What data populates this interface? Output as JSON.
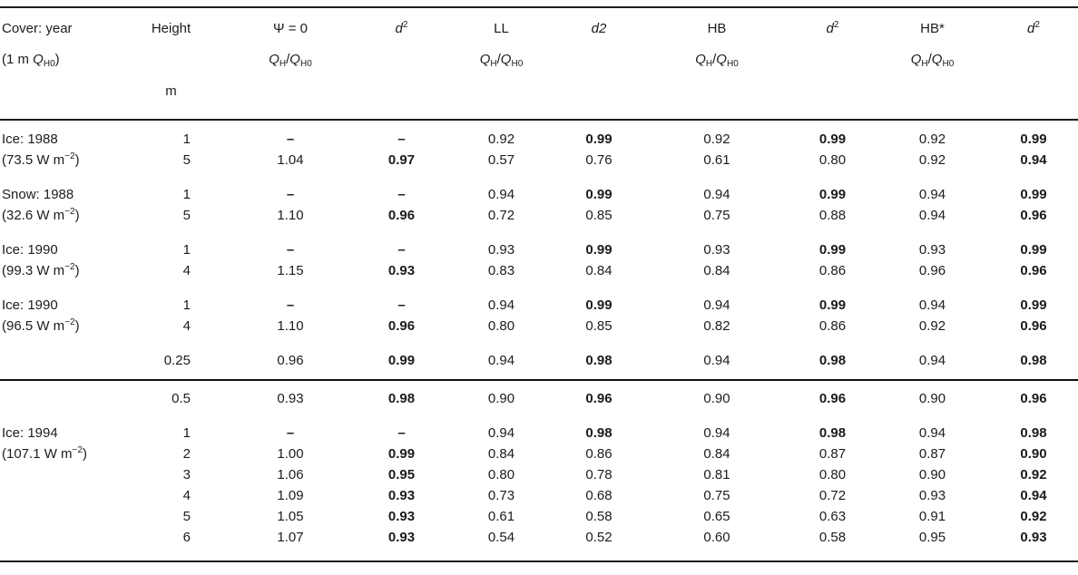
{
  "table": {
    "columns": [
      {
        "name": "cover-year",
        "line1": [
          {
            "t": "Cover: year"
          }
        ],
        "line2": [
          {
            "t": "(1 m "
          },
          {
            "t": "Q",
            "s": "i"
          },
          {
            "t": "H0",
            "s": "sub"
          },
          {
            "t": ")"
          }
        ],
        "line3": []
      },
      {
        "name": "height",
        "line1": [
          {
            "t": "Height"
          }
        ],
        "line2": [],
        "line3": [
          {
            "t": "m"
          }
        ]
      },
      {
        "name": "psi-zero",
        "line1": [
          {
            "t": "Ψ = 0"
          }
        ],
        "line2": [
          {
            "t": "Q",
            "s": "i"
          },
          {
            "t": "H",
            "s": "sub"
          },
          {
            "t": "/"
          },
          {
            "t": "Q",
            "s": "i"
          },
          {
            "t": "H0",
            "s": "sub"
          }
        ],
        "line3": []
      },
      {
        "name": "d2-psi",
        "line1": [
          {
            "t": "d",
            "s": "i"
          },
          {
            "t": "2",
            "s": "sup"
          }
        ],
        "line2": [],
        "line3": []
      },
      {
        "name": "ll",
        "line1": [
          {
            "t": "LL"
          }
        ],
        "line2": [
          {
            "t": "Q",
            "s": "i"
          },
          {
            "t": "H",
            "s": "sub"
          },
          {
            "t": "/"
          },
          {
            "t": "Q",
            "s": "i"
          },
          {
            "t": "H0",
            "s": "sub"
          }
        ],
        "line3": []
      },
      {
        "name": "d2-ll",
        "line1": [
          {
            "t": "d2",
            "s": "i"
          }
        ],
        "line2": [],
        "line3": []
      },
      {
        "name": "hb",
        "line1": [
          {
            "t": "HB"
          }
        ],
        "line2": [
          {
            "t": "Q",
            "s": "i"
          },
          {
            "t": "H",
            "s": "sub"
          },
          {
            "t": "/"
          },
          {
            "t": "Q",
            "s": "i"
          },
          {
            "t": "H0",
            "s": "sub"
          }
        ],
        "line3": []
      },
      {
        "name": "d2-hb",
        "line1": [
          {
            "t": "d",
            "s": "i"
          },
          {
            "t": "2",
            "s": "sup"
          }
        ],
        "line2": [],
        "line3": []
      },
      {
        "name": "hb-star",
        "line1": [
          {
            "t": "HB*"
          }
        ],
        "line2": [
          {
            "t": "Q",
            "s": "i"
          },
          {
            "t": "H",
            "s": "sub"
          },
          {
            "t": "/"
          },
          {
            "t": "Q",
            "s": "i"
          },
          {
            "t": "H0",
            "s": "sub"
          }
        ],
        "line3": []
      },
      {
        "name": "d2-hb-star",
        "line1": [
          {
            "t": "d",
            "s": "i"
          },
          {
            "t": "2",
            "s": "sup"
          }
        ],
        "line2": [],
        "line3": []
      }
    ],
    "sections": {
      "s1": [
        {
          "label": [
            {
              "t": "Ice: 1988"
            }
          ],
          "height": "1",
          "cells": [
            {
              "v": "–",
              "b": true
            },
            {
              "v": "–",
              "b": true
            },
            {
              "v": "0.92"
            },
            {
              "v": "0.99",
              "b": true
            },
            {
              "v": "0.92"
            },
            {
              "v": "0.99",
              "b": true
            },
            {
              "v": "0.92"
            },
            {
              "v": "0.99",
              "b": true
            }
          ]
        },
        {
          "label": [
            {
              "t": "(73.5 W m"
            },
            {
              "t": "−2",
              "s": "sup"
            },
            {
              "t": ")"
            }
          ],
          "height": "5",
          "cells": [
            {
              "v": "1.04"
            },
            {
              "v": "0.97",
              "b": true
            },
            {
              "v": "0.57"
            },
            {
              "v": "0.76"
            },
            {
              "v": "0.61"
            },
            {
              "v": "0.80"
            },
            {
              "v": "0.92"
            },
            {
              "v": "0.94",
              "b": true
            }
          ]
        },
        {
          "label": [
            {
              "t": "Snow: 1988"
            }
          ],
          "height": "1",
          "gap": true,
          "cells": [
            {
              "v": "–",
              "b": true
            },
            {
              "v": "–",
              "b": true
            },
            {
              "v": "0.94"
            },
            {
              "v": "0.99",
              "b": true
            },
            {
              "v": "0.94"
            },
            {
              "v": "0.99",
              "b": true
            },
            {
              "v": "0.94"
            },
            {
              "v": "0.99",
              "b": true
            }
          ]
        },
        {
          "label": [
            {
              "t": "(32.6 W m"
            },
            {
              "t": "−2",
              "s": "sup"
            },
            {
              "t": ")"
            }
          ],
          "height": "5",
          "cells": [
            {
              "v": "1.10"
            },
            {
              "v": "0.96",
              "b": true
            },
            {
              "v": "0.72"
            },
            {
              "v": "0.85"
            },
            {
              "v": "0.75"
            },
            {
              "v": "0.88"
            },
            {
              "v": "0.94"
            },
            {
              "v": "0.96",
              "b": true
            }
          ]
        },
        {
          "label": [
            {
              "t": "Ice: 1990"
            }
          ],
          "height": "1",
          "gap": true,
          "cells": [
            {
              "v": "–",
              "b": true
            },
            {
              "v": "–",
              "b": true
            },
            {
              "v": "0.93"
            },
            {
              "v": "0.99",
              "b": true
            },
            {
              "v": "0.93"
            },
            {
              "v": "0.99",
              "b": true
            },
            {
              "v": "0.93"
            },
            {
              "v": "0.99",
              "b": true
            }
          ]
        },
        {
          "label": [
            {
              "t": "(99.3 W m"
            },
            {
              "t": "−2",
              "s": "sup"
            },
            {
              "t": ")"
            }
          ],
          "height": "4",
          "cells": [
            {
              "v": "1.15"
            },
            {
              "v": "0.93",
              "b": true
            },
            {
              "v": "0.83"
            },
            {
              "v": "0.84"
            },
            {
              "v": "0.84"
            },
            {
              "v": "0.86"
            },
            {
              "v": "0.96"
            },
            {
              "v": "0.96",
              "b": true
            }
          ]
        },
        {
          "label": [
            {
              "t": "Ice: 1990"
            }
          ],
          "height": "1",
          "gap": true,
          "cells": [
            {
              "v": "–",
              "b": true
            },
            {
              "v": "–",
              "b": true
            },
            {
              "v": "0.94"
            },
            {
              "v": "0.99",
              "b": true
            },
            {
              "v": "0.94"
            },
            {
              "v": "0.99",
              "b": true
            },
            {
              "v": "0.94"
            },
            {
              "v": "0.99",
              "b": true
            }
          ]
        },
        {
          "label": [
            {
              "t": "(96.5 W m"
            },
            {
              "t": "−2",
              "s": "sup"
            },
            {
              "t": ")"
            }
          ],
          "height": "4",
          "cells": [
            {
              "v": "1.10"
            },
            {
              "v": "0.96",
              "b": true
            },
            {
              "v": "0.80"
            },
            {
              "v": "0.85"
            },
            {
              "v": "0.82"
            },
            {
              "v": "0.86"
            },
            {
              "v": "0.92"
            },
            {
              "v": "0.96",
              "b": true
            }
          ]
        },
        {
          "label": [],
          "height": "0.25",
          "gap": true,
          "cells": [
            {
              "v": "0.96"
            },
            {
              "v": "0.99",
              "b": true
            },
            {
              "v": "0.94"
            },
            {
              "v": "0.98",
              "b": true
            },
            {
              "v": "0.94"
            },
            {
              "v": "0.98",
              "b": true
            },
            {
              "v": "0.94"
            },
            {
              "v": "0.98",
              "b": true
            }
          ]
        }
      ],
      "s2": [
        {
          "label": [],
          "height": "0.5",
          "cells": [
            {
              "v": "0.93"
            },
            {
              "v": "0.98",
              "b": true
            },
            {
              "v": "0.90"
            },
            {
              "v": "0.96",
              "b": true
            },
            {
              "v": "0.90"
            },
            {
              "v": "0.96",
              "b": true
            },
            {
              "v": "0.90"
            },
            {
              "v": "0.96",
              "b": true
            }
          ]
        },
        {
          "label": [
            {
              "t": "Ice: 1994"
            }
          ],
          "height": "1",
          "gap": true,
          "cells": [
            {
              "v": "–",
              "b": true
            },
            {
              "v": "–",
              "b": true
            },
            {
              "v": "0.94"
            },
            {
              "v": "0.98",
              "b": true
            },
            {
              "v": "0.94"
            },
            {
              "v": "0.98",
              "b": true
            },
            {
              "v": "0.94"
            },
            {
              "v": "0.98",
              "b": true
            }
          ]
        },
        {
          "label": [
            {
              "t": "(107.1 W m"
            },
            {
              "t": "−2",
              "s": "sup"
            },
            {
              "t": ")"
            }
          ],
          "height": "2",
          "cells": [
            {
              "v": "1.00"
            },
            {
              "v": "0.99",
              "b": true
            },
            {
              "v": "0.84"
            },
            {
              "v": "0.86"
            },
            {
              "v": "0.84"
            },
            {
              "v": "0.87"
            },
            {
              "v": "0.87"
            },
            {
              "v": "0.90",
              "b": true
            }
          ]
        },
        {
          "label": [],
          "height": "3",
          "cells": [
            {
              "v": "1.06"
            },
            {
              "v": "0.95",
              "b": true
            },
            {
              "v": "0.80"
            },
            {
              "v": "0.78"
            },
            {
              "v": "0.81"
            },
            {
              "v": "0.80"
            },
            {
              "v": "0.90"
            },
            {
              "v": "0.92",
              "b": true
            }
          ]
        },
        {
          "label": [],
          "height": "4",
          "cells": [
            {
              "v": "1.09"
            },
            {
              "v": "0.93",
              "b": true
            },
            {
              "v": "0.73"
            },
            {
              "v": "0.68"
            },
            {
              "v": "0.75"
            },
            {
              "v": "0.72"
            },
            {
              "v": "0.93"
            },
            {
              "v": "0.94",
              "b": true
            }
          ]
        },
        {
          "label": [],
          "height": "5",
          "cells": [
            {
              "v": "1.05"
            },
            {
              "v": "0.93",
              "b": true
            },
            {
              "v": "0.61"
            },
            {
              "v": "0.58"
            },
            {
              "v": "0.65"
            },
            {
              "v": "0.63"
            },
            {
              "v": "0.91"
            },
            {
              "v": "0.92",
              "b": true
            }
          ]
        },
        {
          "label": [],
          "height": "6",
          "cells": [
            {
              "v": "1.07"
            },
            {
              "v": "0.93",
              "b": true
            },
            {
              "v": "0.54"
            },
            {
              "v": "0.52"
            },
            {
              "v": "0.60"
            },
            {
              "v": "0.58"
            },
            {
              "v": "0.95"
            },
            {
              "v": "0.93",
              "b": true
            }
          ]
        }
      ]
    }
  }
}
